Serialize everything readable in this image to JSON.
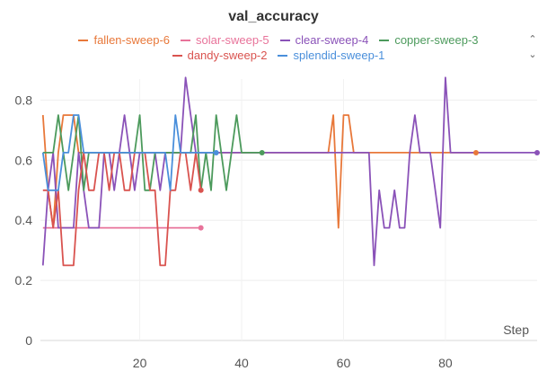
{
  "chart_data": {
    "type": "line",
    "title": "val_accuracy",
    "xlabel": "Step",
    "ylabel": "",
    "xlim": [
      0.5,
      98
    ],
    "ylim": [
      0,
      0.87
    ],
    "xticks": [
      20,
      40,
      60,
      80
    ],
    "yticks": [
      0,
      0.2,
      0.4,
      0.6,
      0.8
    ],
    "legend_rows": [
      [
        "fallen-sweep-6",
        "solar-sweep-5",
        "clear-sweep-4",
        "copper-sweep-3"
      ],
      [
        "dandy-sweep-2",
        "splendid-sweep-1"
      ]
    ],
    "series": [
      {
        "name": "fallen-sweep-6",
        "color": "#e8783a",
        "x": [
          1,
          2,
          3,
          4,
          5,
          6,
          7,
          8,
          9,
          10,
          11,
          12,
          13,
          14,
          15,
          16,
          17,
          18,
          19,
          20,
          21,
          22,
          23,
          24,
          25,
          26,
          27,
          28,
          29,
          30,
          31,
          32,
          33,
          34,
          35,
          40,
          45,
          50,
          55,
          57,
          58,
          59,
          60,
          61,
          62,
          63,
          65,
          70,
          75,
          80,
          84,
          86
        ],
        "y": [
          0.75,
          0.5,
          0.375,
          0.625,
          0.75,
          0.75,
          0.75,
          0.625,
          0.625,
          0.625,
          0.625,
          0.625,
          0.625,
          0.625,
          0.625,
          0.625,
          0.625,
          0.625,
          0.625,
          0.625,
          0.625,
          0.625,
          0.625,
          0.625,
          0.625,
          0.625,
          0.625,
          0.625,
          0.625,
          0.625,
          0.625,
          0.625,
          0.625,
          0.625,
          0.625,
          0.625,
          0.625,
          0.625,
          0.625,
          0.625,
          0.75,
          0.375,
          0.75,
          0.75,
          0.625,
          0.625,
          0.625,
          0.625,
          0.625,
          0.625,
          0.625,
          0.625
        ]
      },
      {
        "name": "solar-sweep-5",
        "color": "#e8739a",
        "x": [
          1,
          5,
          10,
          15,
          20,
          25,
          30,
          32
        ],
        "y": [
          0.375,
          0.375,
          0.375,
          0.375,
          0.375,
          0.375,
          0.375,
          0.375
        ]
      },
      {
        "name": "clear-sweep-4",
        "color": "#8a52b8",
        "x": [
          1,
          2,
          3,
          4,
          5,
          6,
          7,
          8,
          9,
          10,
          11,
          12,
          13,
          14,
          15,
          16,
          17,
          18,
          19,
          20,
          21,
          22,
          23,
          24,
          25,
          26,
          27,
          28,
          29,
          30,
          31,
          32,
          33,
          34,
          35,
          40,
          45,
          50,
          55,
          60,
          63,
          65,
          66,
          67,
          68,
          69,
          70,
          71,
          72,
          73,
          74,
          75,
          76,
          77,
          78,
          79,
          80,
          81,
          82,
          85,
          90,
          95,
          98
        ],
        "y": [
          0.25,
          0.5,
          0.625,
          0.375,
          0.375,
          0.375,
          0.375,
          0.625,
          0.5,
          0.375,
          0.375,
          0.375,
          0.625,
          0.625,
          0.5,
          0.625,
          0.75,
          0.625,
          0.5,
          0.625,
          0.625,
          0.625,
          0.625,
          0.5,
          0.625,
          0.625,
          0.625,
          0.625,
          0.875,
          0.75,
          0.625,
          0.625,
          0.625,
          0.625,
          0.625,
          0.625,
          0.625,
          0.625,
          0.625,
          0.625,
          0.625,
          0.625,
          0.25,
          0.5,
          0.375,
          0.375,
          0.5,
          0.375,
          0.375,
          0.625,
          0.75,
          0.625,
          0.625,
          0.625,
          0.5,
          0.375,
          0.875,
          0.625,
          0.625,
          0.625,
          0.625,
          0.625,
          0.625
        ]
      },
      {
        "name": "copper-sweep-3",
        "color": "#4c9a5c",
        "x": [
          1,
          2,
          3,
          4,
          5,
          6,
          7,
          8,
          9,
          10,
          11,
          12,
          13,
          14,
          15,
          16,
          17,
          18,
          19,
          20,
          21,
          22,
          23,
          24,
          25,
          26,
          27,
          28,
          29,
          30,
          31,
          32,
          33,
          34,
          35,
          36,
          37,
          38,
          39,
          40,
          41,
          42,
          43,
          44
        ],
        "y": [
          0.625,
          0.625,
          0.625,
          0.75,
          0.625,
          0.5,
          0.625,
          0.75,
          0.5,
          0.625,
          0.625,
          0.625,
          0.625,
          0.625,
          0.625,
          0.625,
          0.625,
          0.625,
          0.625,
          0.75,
          0.5,
          0.5,
          0.625,
          0.625,
          0.625,
          0.625,
          0.625,
          0.625,
          0.625,
          0.625,
          0.75,
          0.5,
          0.625,
          0.5,
          0.75,
          0.625,
          0.5,
          0.625,
          0.75,
          0.625,
          0.625,
          0.625,
          0.625,
          0.625
        ]
      },
      {
        "name": "dandy-sweep-2",
        "color": "#d9534f",
        "x": [
          1,
          2,
          3,
          4,
          5,
          6,
          7,
          8,
          9,
          10,
          11,
          12,
          13,
          14,
          15,
          16,
          17,
          18,
          19,
          20,
          21,
          22,
          23,
          24,
          25,
          26,
          27,
          28,
          29,
          30,
          31,
          32
        ],
        "y": [
          0.5,
          0.5,
          0.375,
          0.5,
          0.25,
          0.25,
          0.25,
          0.5,
          0.625,
          0.5,
          0.5,
          0.625,
          0.625,
          0.5,
          0.625,
          0.625,
          0.5,
          0.5,
          0.625,
          0.625,
          0.625,
          0.5,
          0.5,
          0.25,
          0.25,
          0.5,
          0.5,
          0.625,
          0.625,
          0.5,
          0.625,
          0.5
        ]
      },
      {
        "name": "splendid-sweep-1",
        "color": "#4a8fdb",
        "x": [
          1,
          2,
          3,
          4,
          5,
          6,
          7,
          8,
          9,
          10,
          11,
          12,
          13,
          14,
          15,
          16,
          17,
          18,
          19,
          20,
          21,
          22,
          23,
          24,
          25,
          26,
          27,
          28,
          29,
          30,
          31,
          32,
          33,
          34,
          35
        ],
        "y": [
          0.625,
          0.5,
          0.5,
          0.5,
          0.625,
          0.625,
          0.75,
          0.75,
          0.625,
          0.625,
          0.625,
          0.625,
          0.625,
          0.625,
          0.625,
          0.625,
          0.625,
          0.625,
          0.625,
          0.625,
          0.625,
          0.625,
          0.625,
          0.625,
          0.625,
          0.5,
          0.75,
          0.625,
          0.625,
          0.625,
          0.625,
          0.625,
          0.625,
          0.625,
          0.625
        ]
      }
    ]
  }
}
